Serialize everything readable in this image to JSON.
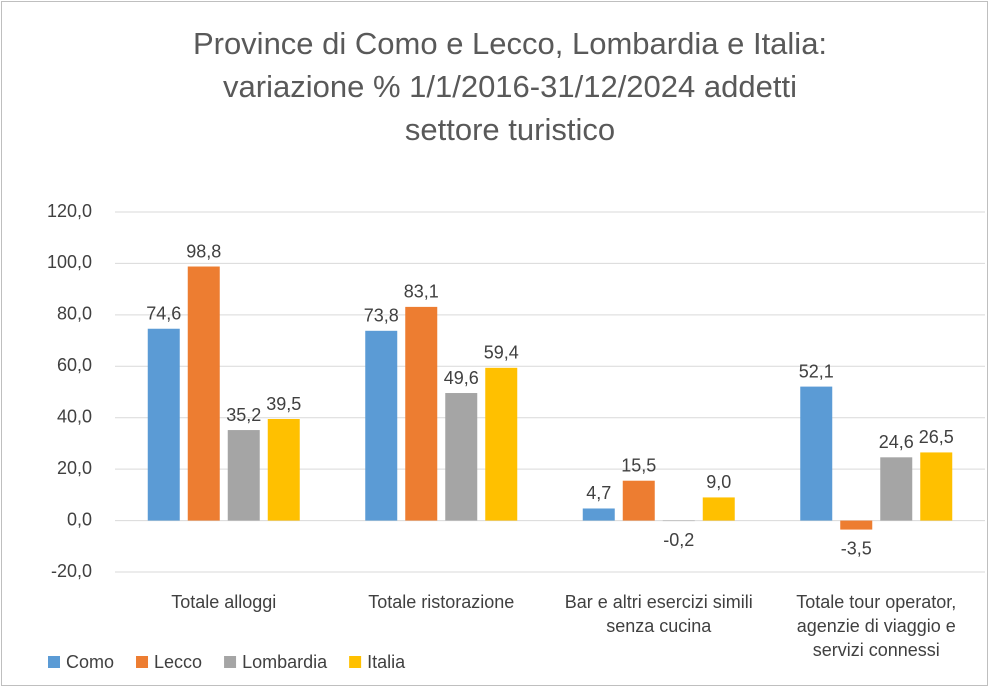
{
  "chart_data": {
    "type": "bar",
    "title": [
      "Province di Como e Lecco, Lombardia e Italia:",
      "variazione % 1/1/2016-31/12/2024 addetti",
      "settore turistico"
    ],
    "categories": [
      "Totale alloggi",
      "Totale ristorazione",
      "Bar e altri esercizi simili senza cucina",
      "Totale tour operator, agenzie di viaggio e servizi connessi"
    ],
    "series": [
      {
        "name": "Como",
        "color": "#5b9bd5",
        "values": [
          74.6,
          73.8,
          4.7,
          52.1
        ],
        "value_labels": [
          "74,6",
          "73,8",
          "4,7",
          "52,1"
        ]
      },
      {
        "name": "Lecco",
        "color": "#ed7d31",
        "values": [
          98.8,
          83.1,
          15.5,
          -3.5
        ],
        "value_labels": [
          "98,8",
          "83,1",
          "15,5",
          "-3,5"
        ]
      },
      {
        "name": "Lombardia",
        "color": "#a5a5a5",
        "values": [
          35.2,
          49.6,
          -0.2,
          24.6
        ],
        "value_labels": [
          "35,2",
          "49,6",
          "-0,2",
          "24,6"
        ]
      },
      {
        "name": "Italia",
        "color": "#ffc000",
        "values": [
          39.5,
          59.4,
          9.0,
          26.5
        ],
        "value_labels": [
          "39,5",
          "59,4",
          "9,0",
          "26,5"
        ]
      }
    ],
    "ylim": [
      -20,
      120
    ],
    "yticks": [
      {
        "value": -20,
        "label": "-20,0"
      },
      {
        "value": 0,
        "label": "0,0"
      },
      {
        "value": 20,
        "label": "20,0"
      },
      {
        "value": 40,
        "label": "40,0"
      },
      {
        "value": 60,
        "label": "60,0"
      },
      {
        "value": 80,
        "label": "80,0"
      },
      {
        "value": 100,
        "label": "100,0"
      },
      {
        "value": 120,
        "label": "120,0"
      }
    ],
    "grid": true,
    "legend": "bottom-left"
  }
}
